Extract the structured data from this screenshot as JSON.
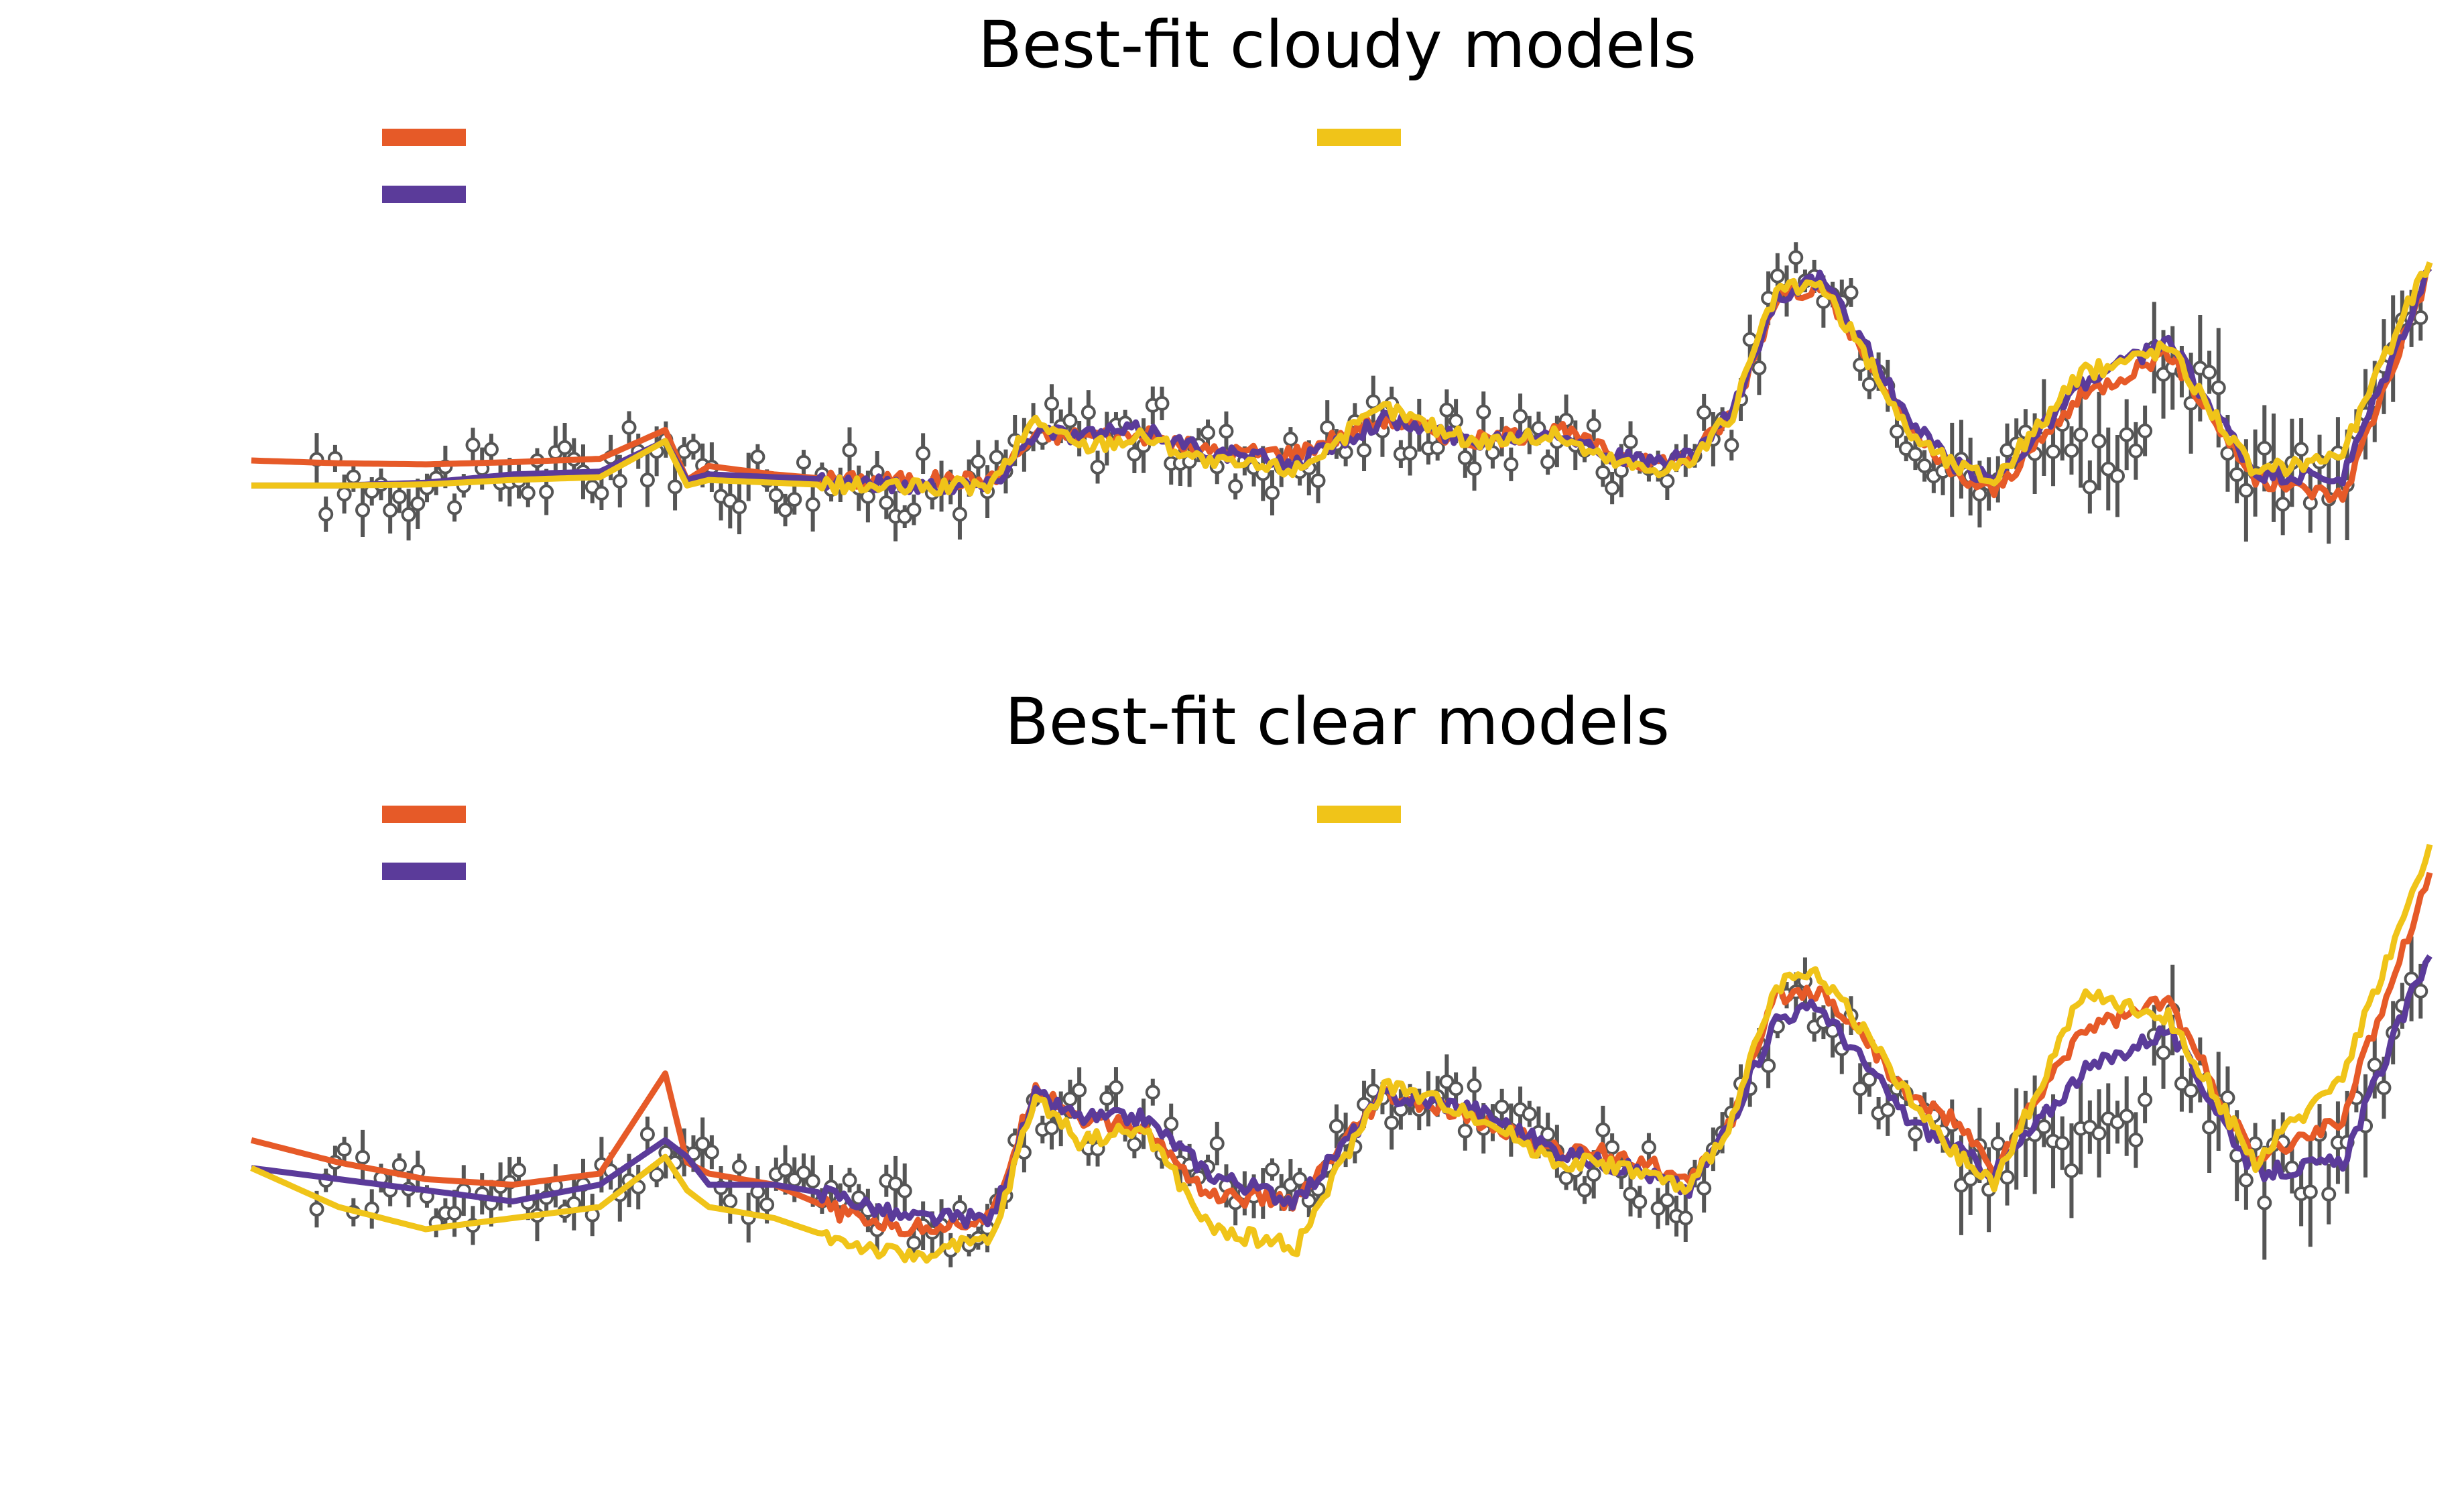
{
  "chart_data": [
    {
      "type": "line",
      "title": "Best-fit cloudy models",
      "xlabel": "",
      "ylabel": "",
      "xlim": [
        0,
        1000
      ],
      "ylim": [
        0.3,
        1.3
      ],
      "grid": false,
      "legend": {
        "placement": "top-left and top-center",
        "entries": 3
      },
      "series": [
        {
          "color": "#e65a28",
          "x": [
            0,
            40,
            80,
            120,
            160,
            190,
            200,
            210,
            240,
            270,
            300,
            340,
            360,
            380,
            410,
            440,
            480,
            520,
            560,
            600,
            620,
            640,
            660,
            680,
            700,
            720,
            740,
            760,
            780,
            800,
            840,
            880,
            920,
            960,
            1000
          ],
          "values": [
            0.665,
            0.66,
            0.658,
            0.662,
            0.668,
            0.72,
            0.63,
            0.655,
            0.64,
            0.63,
            0.63,
            0.63,
            0.71,
            0.71,
            0.71,
            0.68,
            0.68,
            0.74,
            0.7,
            0.72,
            0.685,
            0.66,
            0.67,
            0.75,
            0.96,
            0.98,
            0.86,
            0.73,
            0.64,
            0.61,
            0.78,
            0.86,
            0.63,
            0.6,
            1.01
          ]
        },
        {
          "color": "#5b3b9a",
          "x": [
            0,
            40,
            80,
            120,
            160,
            190,
            200,
            210,
            240,
            270,
            300,
            340,
            360,
            380,
            410,
            440,
            480,
            520,
            560,
            600,
            620,
            640,
            660,
            680,
            700,
            720,
            740,
            760,
            780,
            800,
            840,
            880,
            920,
            960,
            1000
          ],
          "values": [
            0.62,
            0.62,
            0.625,
            0.64,
            0.645,
            0.7,
            0.63,
            0.64,
            0.635,
            0.63,
            0.62,
            0.62,
            0.72,
            0.71,
            0.72,
            0.68,
            0.66,
            0.74,
            0.7,
            0.72,
            0.68,
            0.66,
            0.67,
            0.75,
            0.96,
            0.99,
            0.88,
            0.74,
            0.66,
            0.63,
            0.8,
            0.88,
            0.64,
            0.63,
            1.01
          ]
        },
        {
          "color": "#f0c419",
          "x": [
            0,
            40,
            80,
            120,
            160,
            190,
            200,
            210,
            240,
            270,
            300,
            340,
            360,
            380,
            410,
            440,
            480,
            520,
            560,
            600,
            620,
            640,
            660,
            680,
            700,
            720,
            740,
            760,
            780,
            800,
            840,
            880,
            920,
            960,
            1000
          ],
          "values": [
            0.62,
            0.62,
            0.622,
            0.63,
            0.635,
            0.7,
            0.62,
            0.63,
            0.625,
            0.62,
            0.615,
            0.62,
            0.74,
            0.69,
            0.71,
            0.66,
            0.65,
            0.76,
            0.7,
            0.71,
            0.67,
            0.65,
            0.66,
            0.75,
            0.97,
            0.98,
            0.86,
            0.72,
            0.66,
            0.63,
            0.82,
            0.87,
            0.64,
            0.68,
            1.03
          ]
        }
      ]
    },
    {
      "type": "line",
      "title": "Best-fit clear models",
      "xlabel": "",
      "ylabel": "",
      "xlim": [
        0,
        1000
      ],
      "ylim": [
        0.3,
        1.3
      ],
      "grid": false,
      "legend": {
        "placement": "top-left and top-center",
        "entries": 3
      },
      "series": [
        {
          "color": "#e65a28",
          "x": [
            0,
            40,
            80,
            120,
            160,
            190,
            200,
            210,
            240,
            270,
            300,
            340,
            360,
            380,
            410,
            440,
            480,
            520,
            560,
            600,
            620,
            640,
            660,
            680,
            700,
            720,
            740,
            760,
            780,
            800,
            840,
            880,
            920,
            960,
            1000
          ],
          "values": [
            0.66,
            0.62,
            0.59,
            0.58,
            0.6,
            0.78,
            0.62,
            0.6,
            0.58,
            0.53,
            0.5,
            0.52,
            0.76,
            0.7,
            0.68,
            0.56,
            0.55,
            0.74,
            0.7,
            0.64,
            0.64,
            0.62,
            0.58,
            0.7,
            0.92,
            0.93,
            0.85,
            0.74,
            0.7,
            0.61,
            0.86,
            0.91,
            0.62,
            0.7,
            1.14
          ]
        },
        {
          "color": "#5b3b9a",
          "x": [
            0,
            40,
            80,
            120,
            160,
            190,
            200,
            210,
            240,
            270,
            300,
            340,
            360,
            380,
            410,
            440,
            480,
            520,
            560,
            600,
            620,
            640,
            660,
            680,
            700,
            720,
            740,
            760,
            780,
            800,
            840,
            880,
            920,
            960,
            1000
          ],
          "values": [
            0.61,
            0.59,
            0.57,
            0.55,
            0.58,
            0.66,
            0.63,
            0.58,
            0.58,
            0.56,
            0.52,
            0.52,
            0.74,
            0.7,
            0.7,
            0.6,
            0.55,
            0.74,
            0.72,
            0.64,
            0.62,
            0.6,
            0.57,
            0.7,
            0.88,
            0.9,
            0.8,
            0.7,
            0.65,
            0.6,
            0.78,
            0.86,
            0.6,
            0.62,
            1.0
          ]
        },
        {
          "color": "#f0c419",
          "x": [
            0,
            40,
            80,
            120,
            160,
            190,
            200,
            210,
            240,
            270,
            300,
            340,
            360,
            380,
            410,
            440,
            480,
            520,
            560,
            600,
            620,
            640,
            660,
            680,
            700,
            720,
            740,
            760,
            780,
            800,
            840,
            880,
            920,
            960,
            1000
          ],
          "values": [
            0.61,
            0.54,
            0.5,
            0.52,
            0.54,
            0.63,
            0.57,
            0.54,
            0.52,
            0.48,
            0.45,
            0.48,
            0.74,
            0.66,
            0.68,
            0.5,
            0.47,
            0.76,
            0.71,
            0.62,
            0.62,
            0.6,
            0.57,
            0.7,
            0.94,
            0.96,
            0.86,
            0.74,
            0.64,
            0.58,
            0.92,
            0.88,
            0.62,
            0.78,
            1.18
          ]
        }
      ]
    }
  ]
}
